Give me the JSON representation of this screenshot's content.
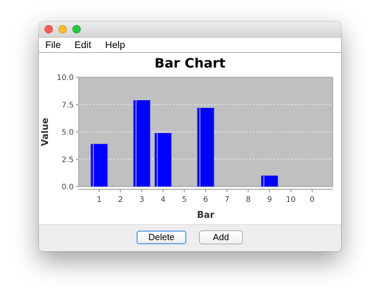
{
  "window": {
    "controls": [
      "close",
      "minimize",
      "maximize"
    ]
  },
  "menu": {
    "items": [
      "File",
      "Edit",
      "Help"
    ]
  },
  "buttons": {
    "delete_label": "Delete",
    "add_label": "Add"
  },
  "chart_data": {
    "type": "bar",
    "title": "Bar Chart",
    "xlabel": "Bar",
    "ylabel": "Value",
    "categories": [
      "1",
      "2",
      "3",
      "4",
      "5",
      "6",
      "7",
      "8",
      "9",
      "10",
      "0"
    ],
    "values": [
      3.9,
      0,
      7.9,
      4.9,
      0,
      7.2,
      0,
      0,
      1.0,
      0,
      0
    ],
    "ylim": [
      0,
      10
    ],
    "yticks": [
      "0.0",
      "2.5",
      "5.0",
      "7.5",
      "10.0"
    ],
    "grid": true,
    "colors": {
      "bar": "#0000ff",
      "bar_highlight": "#8c8cff",
      "plot_background": "#c0c0c0",
      "gridline": "#ffffff"
    }
  }
}
